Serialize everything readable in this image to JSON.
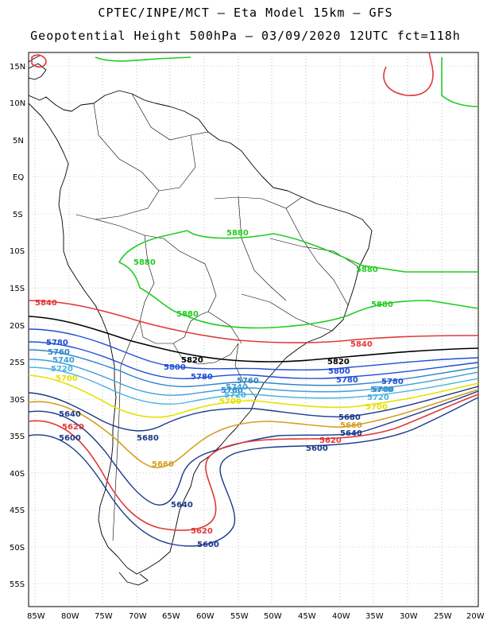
{
  "header": {
    "line1": "CPTEC/INPE/MCT –  Eta Model 15km – GFS",
    "line2": "Geopotential Height 500hPa – 03/09/2020 12UTC fct=118h"
  },
  "axes": {
    "lat_labels": [
      "15N",
      "10N",
      "5N",
      "EQ",
      "5S",
      "10S",
      "15S",
      "20S",
      "25S",
      "30S",
      "35S",
      "40S",
      "45S",
      "50S",
      "55S"
    ],
    "lon_labels": [
      "85W",
      "80W",
      "75W",
      "70W",
      "65W",
      "60W",
      "55W",
      "50W",
      "45W",
      "40W",
      "35W",
      "30W",
      "25W",
      "20W"
    ]
  },
  "contours": [
    {
      "value": "5880",
      "color": "#22cc22",
      "labels": [
        "5880",
        "5880",
        "5880",
        "5880",
        "5880"
      ]
    },
    {
      "value": "5840",
      "color": "#e03a3a",
      "labels": [
        "5840",
        "5840"
      ]
    },
    {
      "value": "5820",
      "color": "#000000",
      "labels": [
        "5820",
        "5820"
      ]
    },
    {
      "value": "5800",
      "color": "#1f4fd6",
      "labels": [
        "5800",
        "5800"
      ]
    },
    {
      "value": "5780",
      "color": "#1f4fd6",
      "labels": [
        "5780",
        "5780",
        "5780",
        "5780"
      ]
    },
    {
      "value": "5760",
      "color": "#2d84c8",
      "labels": [
        "5760",
        "5760",
        "5760",
        "5760"
      ]
    },
    {
      "value": "5740",
      "color": "#3fa0d8",
      "labels": [
        "5740",
        "5740",
        "5740"
      ]
    },
    {
      "value": "5720",
      "color": "#4ab4df",
      "labels": [
        "5720",
        "5720",
        "5720"
      ]
    },
    {
      "value": "5700",
      "color": "#e8e000",
      "labels": [
        "5700",
        "5700",
        "5700"
      ]
    },
    {
      "value": "5680",
      "color": "#1a3a8a",
      "labels": [
        "5680",
        "5680"
      ]
    },
    {
      "value": "5660",
      "color": "#d4a020",
      "labels": [
        "5660",
        "5660"
      ]
    },
    {
      "value": "5640",
      "color": "#1a3a8a",
      "labels": [
        "5640",
        "5640",
        "5640"
      ]
    },
    {
      "value": "5620",
      "color": "#e03a3a",
      "labels": [
        "5620",
        "5620",
        "5620"
      ]
    },
    {
      "value": "5600",
      "color": "#1a3a8a",
      "labels": [
        "5600",
        "5600",
        "5600"
      ]
    }
  ]
}
